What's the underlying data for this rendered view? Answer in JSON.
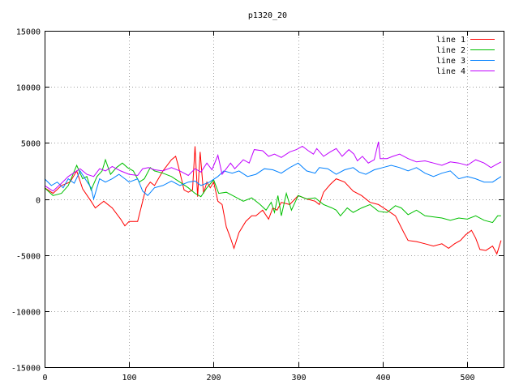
{
  "chart_data": {
    "type": "line",
    "title": "p1320_20",
    "xlabel": "",
    "ylabel": "",
    "xlim": [
      0,
      543
    ],
    "ylim": [
      -15000,
      15000
    ],
    "x_ticks": [
      0,
      100,
      200,
      300,
      400,
      500
    ],
    "y_ticks": [
      -15000,
      -10000,
      -5000,
      0,
      5000,
      10000,
      15000
    ],
    "grid": true,
    "legend_position": "top-right",
    "series": [
      {
        "name": "line 1",
        "color": "#ff0000",
        "points": [
          [
            0,
            1000
          ],
          [
            10,
            500
          ],
          [
            20,
            1200
          ],
          [
            30,
            1500
          ],
          [
            38,
            2500
          ],
          [
            45,
            900
          ],
          [
            55,
            -200
          ],
          [
            60,
            -800
          ],
          [
            70,
            -200
          ],
          [
            80,
            -800
          ],
          [
            90,
            -1800
          ],
          [
            95,
            -2400
          ],
          [
            100,
            -2000
          ],
          [
            110,
            -2000
          ],
          [
            115,
            -500
          ],
          [
            120,
            1000
          ],
          [
            125,
            1500
          ],
          [
            130,
            1200
          ],
          [
            140,
            2500
          ],
          [
            150,
            3500
          ],
          [
            155,
            3800
          ],
          [
            158,
            3000
          ],
          [
            165,
            800
          ],
          [
            170,
            600
          ],
          [
            175,
            800
          ],
          [
            178,
            4700
          ],
          [
            181,
            200
          ],
          [
            184,
            4200
          ],
          [
            188,
            500
          ],
          [
            192,
            1500
          ],
          [
            196,
            1000
          ],
          [
            200,
            1500
          ],
          [
            205,
            -200
          ],
          [
            210,
            -500
          ],
          [
            215,
            -2500
          ],
          [
            220,
            -3500
          ],
          [
            224,
            -4400
          ],
          [
            230,
            -3000
          ],
          [
            238,
            -2000
          ],
          [
            245,
            -1500
          ],
          [
            250,
            -1500
          ],
          [
            258,
            -1000
          ],
          [
            265,
            -1800
          ],
          [
            270,
            -800
          ],
          [
            275,
            -1000
          ],
          [
            280,
            -300
          ],
          [
            290,
            -500
          ],
          [
            300,
            300
          ],
          [
            310,
            0
          ],
          [
            320,
            -200
          ],
          [
            325,
            -500
          ],
          [
            330,
            600
          ],
          [
            338,
            1300
          ],
          [
            345,
            1800
          ],
          [
            355,
            1500
          ],
          [
            365,
            700
          ],
          [
            375,
            300
          ],
          [
            385,
            -300
          ],
          [
            395,
            -500
          ],
          [
            405,
            -1000
          ],
          [
            415,
            -1500
          ],
          [
            425,
            -3000
          ],
          [
            430,
            -3700
          ],
          [
            440,
            -3800
          ],
          [
            450,
            -4000
          ],
          [
            460,
            -4200
          ],
          [
            470,
            -4000
          ],
          [
            478,
            -4400
          ],
          [
            485,
            -4000
          ],
          [
            492,
            -3700
          ],
          [
            498,
            -3200
          ],
          [
            505,
            -2800
          ],
          [
            510,
            -3500
          ],
          [
            515,
            -4500
          ],
          [
            522,
            -4600
          ],
          [
            530,
            -4200
          ],
          [
            535,
            -4900
          ],
          [
            540,
            -3700
          ]
        ]
      },
      {
        "name": "line 2",
        "color": "#00c000",
        "points": [
          [
            0,
            1000
          ],
          [
            10,
            300
          ],
          [
            20,
            500
          ],
          [
            28,
            1200
          ],
          [
            38,
            3000
          ],
          [
            45,
            1800
          ],
          [
            50,
            2000
          ],
          [
            55,
            800
          ],
          [
            62,
            2000
          ],
          [
            68,
            2500
          ],
          [
            72,
            3500
          ],
          [
            78,
            2200
          ],
          [
            85,
            2800
          ],
          [
            92,
            3200
          ],
          [
            98,
            2800
          ],
          [
            105,
            2500
          ],
          [
            112,
            1500
          ],
          [
            118,
            1800
          ],
          [
            125,
            2800
          ],
          [
            130,
            2500
          ],
          [
            140,
            2300
          ],
          [
            150,
            2000
          ],
          [
            160,
            1500
          ],
          [
            170,
            1000
          ],
          [
            178,
            500
          ],
          [
            185,
            200
          ],
          [
            192,
            1000
          ],
          [
            200,
            1700
          ],
          [
            206,
            500
          ],
          [
            215,
            600
          ],
          [
            225,
            200
          ],
          [
            235,
            -200
          ],
          [
            245,
            100
          ],
          [
            255,
            -500
          ],
          [
            262,
            -1000
          ],
          [
            268,
            -300
          ],
          [
            272,
            -1200
          ],
          [
            276,
            300
          ],
          [
            280,
            -1500
          ],
          [
            286,
            500
          ],
          [
            292,
            -1000
          ],
          [
            300,
            300
          ],
          [
            310,
            0
          ],
          [
            320,
            100
          ],
          [
            330,
            -500
          ],
          [
            340,
            -800
          ],
          [
            345,
            -1000
          ],
          [
            350,
            -1500
          ],
          [
            358,
            -800
          ],
          [
            365,
            -1200
          ],
          [
            375,
            -800
          ],
          [
            385,
            -500
          ],
          [
            395,
            -1100
          ],
          [
            405,
            -1200
          ],
          [
            415,
            -600
          ],
          [
            422,
            -800
          ],
          [
            430,
            -1400
          ],
          [
            440,
            -1000
          ],
          [
            450,
            -1500
          ],
          [
            460,
            -1600
          ],
          [
            470,
            -1700
          ],
          [
            480,
            -1900
          ],
          [
            490,
            -1700
          ],
          [
            500,
            -1800
          ],
          [
            510,
            -1500
          ],
          [
            520,
            -1900
          ],
          [
            530,
            -2100
          ],
          [
            536,
            -1500
          ],
          [
            540,
            -1500
          ]
        ]
      },
      {
        "name": "line 3",
        "color": "#0080ff",
        "points": [
          [
            0,
            1800
          ],
          [
            8,
            1200
          ],
          [
            15,
            1500
          ],
          [
            22,
            1000
          ],
          [
            28,
            1800
          ],
          [
            35,
            1400
          ],
          [
            42,
            2500
          ],
          [
            48,
            1800
          ],
          [
            55,
            1000
          ],
          [
            58,
            0
          ],
          [
            65,
            1800
          ],
          [
            72,
            1500
          ],
          [
            80,
            1800
          ],
          [
            88,
            2200
          ],
          [
            95,
            1800
          ],
          [
            100,
            1500
          ],
          [
            110,
            1800
          ],
          [
            116,
            700
          ],
          [
            122,
            300
          ],
          [
            130,
            1000
          ],
          [
            140,
            1200
          ],
          [
            150,
            1600
          ],
          [
            160,
            1200
          ],
          [
            170,
            1500
          ],
          [
            178,
            1600
          ],
          [
            185,
            1200
          ],
          [
            195,
            1500
          ],
          [
            205,
            2000
          ],
          [
            212,
            2500
          ],
          [
            222,
            2300
          ],
          [
            230,
            2500
          ],
          [
            240,
            2000
          ],
          [
            250,
            2200
          ],
          [
            260,
            2700
          ],
          [
            270,
            2600
          ],
          [
            280,
            2300
          ],
          [
            290,
            2800
          ],
          [
            300,
            3200
          ],
          [
            310,
            2500
          ],
          [
            320,
            2300
          ],
          [
            325,
            2800
          ],
          [
            335,
            2700
          ],
          [
            345,
            2200
          ],
          [
            355,
            2600
          ],
          [
            365,
            2800
          ],
          [
            372,
            2400
          ],
          [
            380,
            2200
          ],
          [
            390,
            2600
          ],
          [
            400,
            2800
          ],
          [
            410,
            3000
          ],
          [
            420,
            2800
          ],
          [
            430,
            2500
          ],
          [
            440,
            2800
          ],
          [
            450,
            2300
          ],
          [
            460,
            2000
          ],
          [
            470,
            2300
          ],
          [
            480,
            2500
          ],
          [
            490,
            1800
          ],
          [
            500,
            2000
          ],
          [
            510,
            1800
          ],
          [
            520,
            1500
          ],
          [
            530,
            1500
          ],
          [
            540,
            2000
          ]
        ]
      },
      {
        "name": "line 4",
        "color": "#c000ff",
        "points": [
          [
            0,
            1200
          ],
          [
            10,
            700
          ],
          [
            20,
            1400
          ],
          [
            28,
            2000
          ],
          [
            36,
            2400
          ],
          [
            42,
            2700
          ],
          [
            50,
            2200
          ],
          [
            58,
            2000
          ],
          [
            65,
            2700
          ],
          [
            72,
            2500
          ],
          [
            80,
            2900
          ],
          [
            90,
            2500
          ],
          [
            100,
            2200
          ],
          [
            110,
            2100
          ],
          [
            116,
            2700
          ],
          [
            123,
            2800
          ],
          [
            130,
            2600
          ],
          [
            140,
            2500
          ],
          [
            150,
            2800
          ],
          [
            160,
            2500
          ],
          [
            170,
            2100
          ],
          [
            178,
            2700
          ],
          [
            185,
            2400
          ],
          [
            192,
            3200
          ],
          [
            198,
            2600
          ],
          [
            205,
            3900
          ],
          [
            210,
            2200
          ],
          [
            220,
            3200
          ],
          [
            225,
            2700
          ],
          [
            235,
            3500
          ],
          [
            242,
            3200
          ],
          [
            248,
            4400
          ],
          [
            258,
            4300
          ],
          [
            265,
            3800
          ],
          [
            272,
            4000
          ],
          [
            280,
            3700
          ],
          [
            290,
            4200
          ],
          [
            298,
            4400
          ],
          [
            305,
            4700
          ],
          [
            312,
            4300
          ],
          [
            318,
            4000
          ],
          [
            322,
            4500
          ],
          [
            330,
            3800
          ],
          [
            338,
            4200
          ],
          [
            345,
            4500
          ],
          [
            352,
            3800
          ],
          [
            360,
            4400
          ],
          [
            366,
            4000
          ],
          [
            370,
            3400
          ],
          [
            376,
            3800
          ],
          [
            383,
            3200
          ],
          [
            390,
            3500
          ],
          [
            395,
            5100
          ],
          [
            397,
            3600
          ],
          [
            405,
            3600
          ],
          [
            412,
            3800
          ],
          [
            420,
            4000
          ],
          [
            430,
            3600
          ],
          [
            440,
            3300
          ],
          [
            450,
            3400
          ],
          [
            460,
            3200
          ],
          [
            470,
            3000
          ],
          [
            480,
            3300
          ],
          [
            490,
            3200
          ],
          [
            500,
            3000
          ],
          [
            510,
            3500
          ],
          [
            520,
            3200
          ],
          [
            528,
            2800
          ],
          [
            535,
            3100
          ],
          [
            540,
            3300
          ]
        ]
      }
    ]
  }
}
